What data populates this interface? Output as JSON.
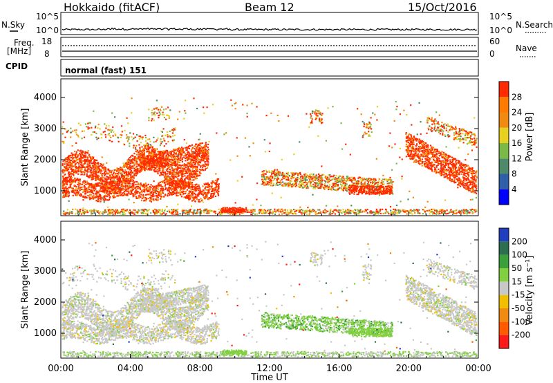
{
  "header": {
    "site": "Hokkaido (fitACF)",
    "beam": "Beam 12",
    "date": "15/Oct/2016"
  },
  "top_panels": {
    "noise": {
      "left_label": "N.Sky",
      "right_label": "N.Search",
      "left_ticks": [
        "10^5",
        "10^0"
      ],
      "right_ticks": [
        "10^5",
        "10^0"
      ]
    },
    "freq": {
      "left_label_line1": "Freq.",
      "left_label_line2": "[MHz]",
      "right_label": "Nave",
      "left_ticks": [
        "18",
        "8"
      ],
      "right_ticks": [
        "60",
        "0"
      ]
    },
    "cpid": {
      "left_label": "CPID",
      "mode_text": "normal (fast) 151"
    }
  },
  "chart_data": [
    {
      "type": "heatmap",
      "name": "power",
      "ylabel": "Slant Range [km]",
      "xlabel": "",
      "xlim": [
        "00:00",
        "24:00"
      ],
      "ylim": [
        200,
        4600
      ],
      "y_ticks": [
        1000,
        2000,
        3000,
        4000
      ],
      "colorbar": {
        "label": "Power [dB]",
        "ticks": [
          "4",
          "8",
          "12",
          "16",
          "20",
          "24",
          "28"
        ],
        "colors": [
          "#0000ff",
          "#2e5fa8",
          "#4e8a6a",
          "#7ab848",
          "#e6d020",
          "#f08a10",
          "#ff2a00"
        ]
      }
    },
    {
      "type": "heatmap",
      "name": "velocity",
      "ylabel": "Slant Range [km]",
      "xlabel": "Time UT",
      "xlim": [
        "00:00",
        "24:00"
      ],
      "ylim": [
        200,
        4600
      ],
      "y_ticks": [
        1000,
        2000,
        3000,
        4000
      ],
      "x_ticks": [
        "00:00",
        "04:00",
        "08:00",
        "12:00",
        "16:00",
        "20:00",
        "00:00"
      ],
      "colorbar": {
        "label": "Velocity [m s⁻¹]",
        "ticks": [
          "200",
          "100",
          "50",
          "15",
          "-15",
          "-50",
          "-100",
          "-200"
        ],
        "colors": [
          "#1f3fbf",
          "#2e6e50",
          "#3aa03a",
          "#80d040",
          "#c8c8c8",
          "#f0c000",
          "#f08a10",
          "#ff5a00",
          "#ff1a1a"
        ]
      }
    }
  ]
}
